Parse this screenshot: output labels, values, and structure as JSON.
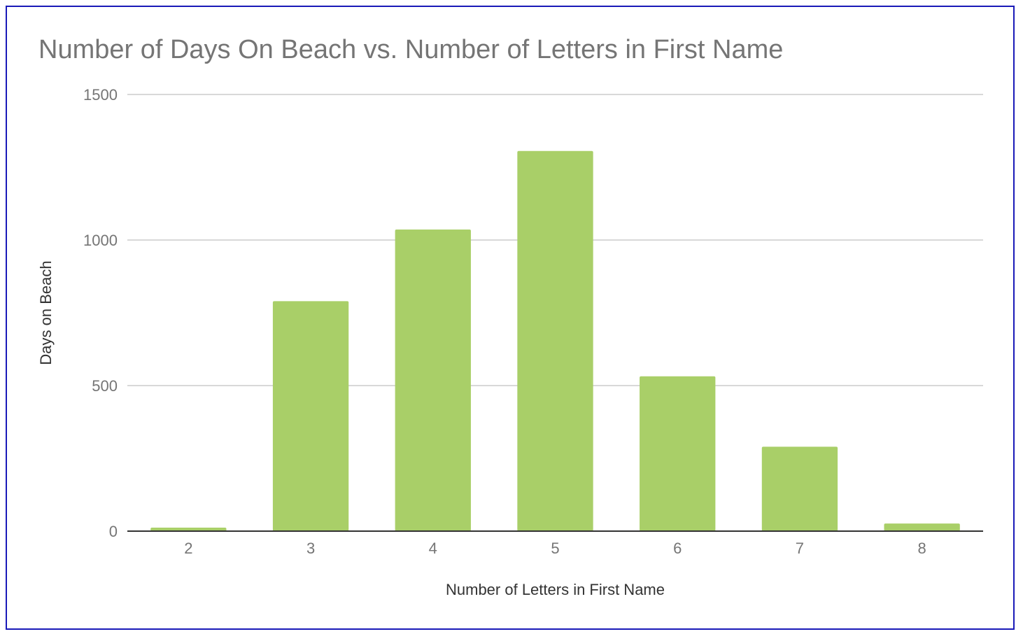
{
  "chart_data": {
    "type": "bar",
    "title": "Number of Days On Beach vs. Number of Letters in First Name",
    "xlabel": "Number of Letters in First Name",
    "ylabel": "Days on Beach",
    "categories": [
      "2",
      "3",
      "4",
      "5",
      "6",
      "7",
      "8"
    ],
    "series": [
      {
        "values": [
          12,
          790,
          1036,
          1306,
          532,
          290,
          26
        ]
      }
    ],
    "ylim": [
      0,
      1500
    ],
    "yticks": [
      "0",
      "500",
      "1000",
      "1500"
    ],
    "grid": true,
    "legend": "none",
    "bar_color": "#a9cf68",
    "gridline_color": "#cccccc",
    "axis_color": "#333333"
  }
}
